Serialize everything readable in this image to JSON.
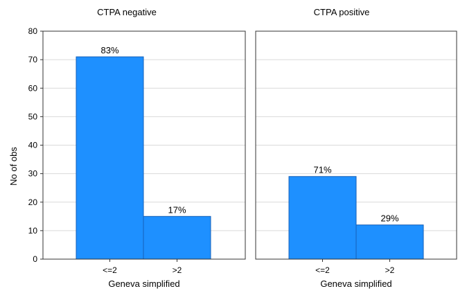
{
  "chart_data": [
    {
      "type": "bar",
      "title": "CTPA negative",
      "xlabel": "Geneva simplified",
      "ylabel": "No of obs",
      "ylim": [
        0,
        80
      ],
      "yticks": [
        0,
        10,
        20,
        30,
        40,
        50,
        60,
        70,
        80
      ],
      "grid": true,
      "categories": [
        "<=2",
        ">2"
      ],
      "values": [
        71,
        15
      ],
      "data_labels": [
        "83%",
        "17%"
      ],
      "bar_color": "#1e90ff"
    },
    {
      "type": "bar",
      "title": "CTPA positive",
      "xlabel": "Geneva simplified",
      "ylabel": "",
      "ylim": [
        0,
        80
      ],
      "yticks": [
        0,
        10,
        20,
        30,
        40,
        50,
        60,
        70,
        80
      ],
      "grid": true,
      "categories": [
        "<=2",
        ">2"
      ],
      "values": [
        29,
        12
      ],
      "data_labels": [
        "71%",
        "29%"
      ],
      "bar_color": "#1e90ff"
    }
  ]
}
